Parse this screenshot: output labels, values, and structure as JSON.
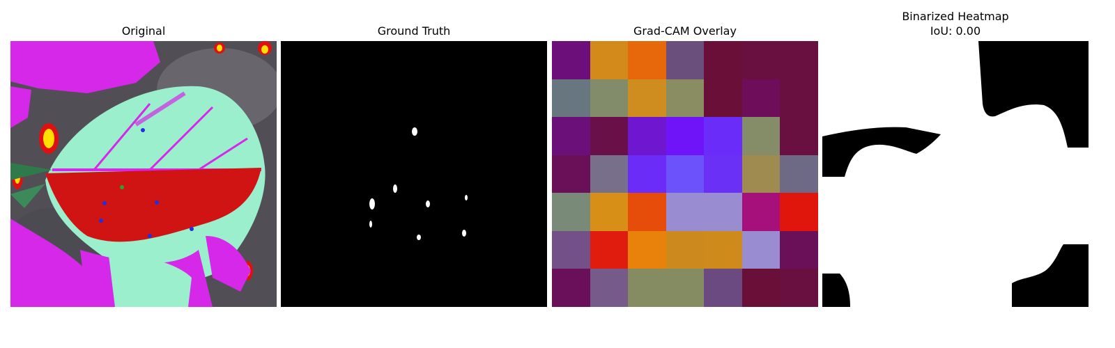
{
  "panels": {
    "original": {
      "title": "Original"
    },
    "ground_truth": {
      "title": "Ground Truth"
    },
    "gradcam": {
      "title": "Grad-CAM Overlay",
      "grid": [
        [
          "#6c0f7a",
          "#d48a1a",
          "#e6680a",
          "#6a4e7c",
          "#6a1038",
          "#6a1040",
          "#6a1040"
        ],
        [
          "#687680",
          "#828b6a",
          "#cf8c1f",
          "#8a8d62",
          "#6a1038",
          "#6e0e5a",
          "#6a1040"
        ],
        [
          "#6a1078",
          "#6a1048",
          "#6e16d0",
          "#6f14f8",
          "#6a2cf8",
          "#858d68",
          "#6a1040"
        ],
        [
          "#6a1058",
          "#78708a",
          "#6c2cf8",
          "#6c52fa",
          "#6a30f6",
          "#9f8a4f",
          "#6e6a86"
        ],
        [
          "#7a8a78",
          "#d88f17",
          "#e64d0b",
          "#9a8cd0",
          "#9a8cd0",
          "#a6107a",
          "#e0160c"
        ],
        [
          "#745088",
          "#e01c0e",
          "#e8820a",
          "#cc8a1e",
          "#cf8a1c",
          "#9a8cd0",
          "#6a1058"
        ],
        [
          "#6a105a",
          "#765a8a",
          "#858c62",
          "#858c62",
          "#6a4a80",
          "#6a1038",
          "#6a1040"
        ]
      ]
    },
    "binarized": {
      "title": "Binarized Heatmap",
      "subtitle": "IoU: 0.00"
    }
  }
}
